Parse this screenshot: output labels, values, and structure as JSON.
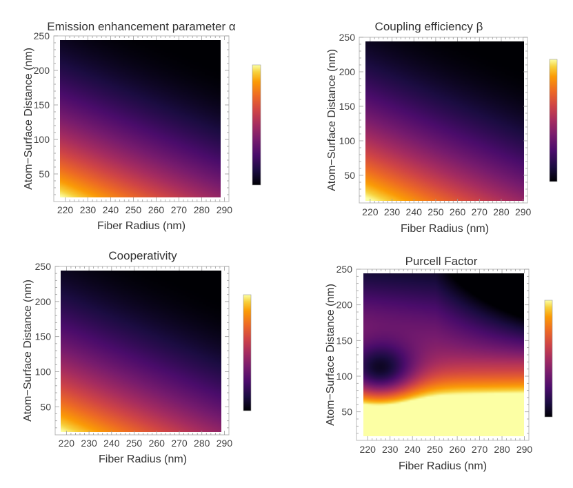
{
  "chart_data": [
    {
      "type": "heatmap",
      "title": "Emission enhancement parameter α",
      "xlabel": "Fiber Radius (nm)",
      "ylabel": "Atom−Surface Distance (nm)",
      "xlim": [
        215,
        292
      ],
      "ylim": [
        10,
        250
      ],
      "x_ticks": [
        220,
        230,
        240,
        250,
        260,
        270,
        280,
        290
      ],
      "y_ticks": [
        50,
        100,
        150,
        200,
        250
      ],
      "x_tick_labels": [
        "220",
        "230",
        "240",
        "250",
        "260",
        "270",
        "280",
        "290"
      ],
      "y_tick_labels": [
        "50",
        "100",
        "150",
        "200",
        "250"
      ],
      "colorbar": "inferno, dark = low, light = high",
      "pattern": "decays with atom-surface distance and fiber radius",
      "samples": [
        {
          "x": 220,
          "y": 20,
          "level": 0.97
        },
        {
          "x": 220,
          "y": 100,
          "level": 0.52
        },
        {
          "x": 220,
          "y": 200,
          "level": 0.12
        },
        {
          "x": 255,
          "y": 50,
          "level": 0.72
        },
        {
          "x": 255,
          "y": 150,
          "level": 0.22
        },
        {
          "x": 290,
          "y": 20,
          "level": 0.68
        },
        {
          "x": 290,
          "y": 100,
          "level": 0.2
        },
        {
          "x": 290,
          "y": 250,
          "level": 0.0
        }
      ]
    },
    {
      "type": "heatmap",
      "title": "Coupling efficiency β",
      "xlabel": "Fiber Radius (nm)",
      "ylabel": "Atom−Surface Distance (nm)",
      "xlim": [
        215,
        292
      ],
      "ylim": [
        10,
        250
      ],
      "x_ticks": [
        220,
        230,
        240,
        250,
        260,
        270,
        280,
        290
      ],
      "y_ticks": [
        50,
        100,
        150,
        200,
        250
      ],
      "x_tick_labels": [
        "220",
        "230",
        "240",
        "250",
        "260",
        "270",
        "280",
        "290"
      ],
      "y_tick_labels": [
        "50",
        "100",
        "150",
        "200",
        "250"
      ],
      "colorbar": "inferno, dark = low, light = high",
      "pattern": "decays with atom-surface distance and fiber radius",
      "samples": [
        {
          "x": 220,
          "y": 20,
          "level": 0.98
        },
        {
          "x": 220,
          "y": 100,
          "level": 0.55
        },
        {
          "x": 220,
          "y": 200,
          "level": 0.15
        },
        {
          "x": 255,
          "y": 50,
          "level": 0.72
        },
        {
          "x": 255,
          "y": 150,
          "level": 0.25
        },
        {
          "x": 290,
          "y": 20,
          "level": 0.65
        },
        {
          "x": 290,
          "y": 100,
          "level": 0.24
        },
        {
          "x": 290,
          "y": 250,
          "level": 0.0
        }
      ]
    },
    {
      "type": "heatmap",
      "title": "Cooperativity",
      "xlabel": "Fiber Radius (nm)",
      "ylabel": "Atom−Surface Distance (nm)",
      "xlim": [
        215,
        292
      ],
      "ylim": [
        10,
        250
      ],
      "x_ticks": [
        220,
        230,
        240,
        250,
        260,
        270,
        280,
        290
      ],
      "y_ticks": [
        50,
        100,
        150,
        200,
        250
      ],
      "x_tick_labels": [
        "220",
        "230",
        "240",
        "250",
        "260",
        "270",
        "280",
        "290"
      ],
      "y_tick_labels": [
        "50",
        "100",
        "150",
        "200",
        "250"
      ],
      "colorbar": "inferno, dark = low, light = high",
      "pattern": "decays with atom-surface distance and fiber radius",
      "samples": [
        {
          "x": 220,
          "y": 20,
          "level": 0.97
        },
        {
          "x": 220,
          "y": 100,
          "level": 0.55
        },
        {
          "x": 220,
          "y": 200,
          "level": 0.13
        },
        {
          "x": 255,
          "y": 50,
          "level": 0.73
        },
        {
          "x": 255,
          "y": 150,
          "level": 0.25
        },
        {
          "x": 290,
          "y": 20,
          "level": 0.7
        },
        {
          "x": 290,
          "y": 100,
          "level": 0.24
        },
        {
          "x": 290,
          "y": 250,
          "level": 0.0
        }
      ]
    },
    {
      "type": "heatmap",
      "title": "Purcell Factor",
      "xlabel": "Fiber Radius (nm)",
      "ylabel": "Atom−Surface Distance (nm)",
      "xlim": [
        215,
        292
      ],
      "ylim": [
        10,
        250
      ],
      "x_ticks": [
        220,
        230,
        240,
        250,
        260,
        270,
        280,
        290
      ],
      "y_ticks": [
        50,
        100,
        150,
        200,
        250
      ],
      "x_tick_labels": [
        "220",
        "230",
        "240",
        "250",
        "260",
        "270",
        "280",
        "290"
      ],
      "y_tick_labels": [
        "50",
        "100",
        "150",
        "200",
        "250"
      ],
      "colorbar": "inferno, dark = low, light = high",
      "pattern": "high near the surface; minimum near radius 225 nm at distance 100 nm; low at large radius and large distance",
      "samples": [
        {
          "x": 220,
          "y": 20,
          "level": 0.9
        },
        {
          "x": 225,
          "y": 100,
          "level": 0.1
        },
        {
          "x": 220,
          "y": 230,
          "level": 0.38
        },
        {
          "x": 255,
          "y": 40,
          "level": 0.82
        },
        {
          "x": 255,
          "y": 150,
          "level": 0.45
        },
        {
          "x": 290,
          "y": 20,
          "level": 0.97
        },
        {
          "x": 290,
          "y": 100,
          "level": 0.6
        },
        {
          "x": 290,
          "y": 250,
          "level": 0.05
        }
      ]
    }
  ]
}
